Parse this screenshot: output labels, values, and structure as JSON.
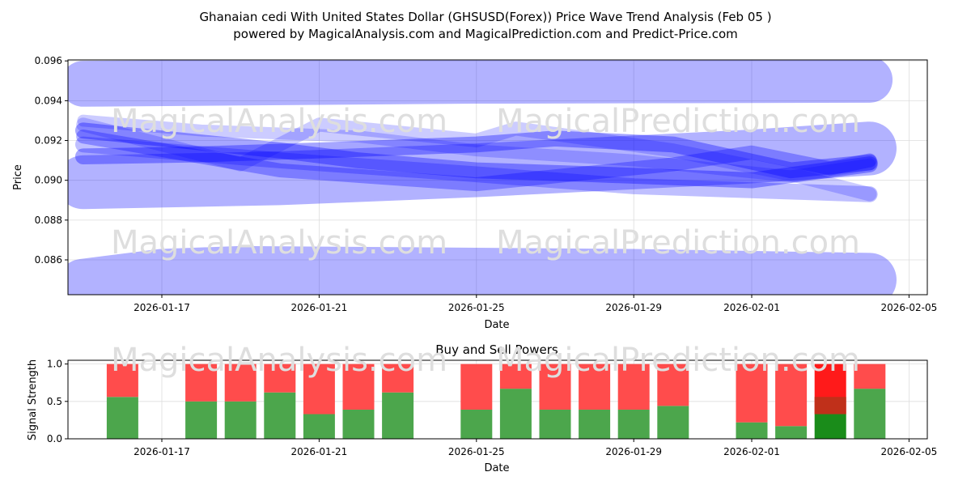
{
  "title_line1": "Ghanaian cedi With United States Dollar (GHSUSD(Forex)) Price Wave Trend Analysis (Feb 05 )",
  "title_line2": "powered by MagicalAnalysis.com and MagicalPrediction.com and Predict-Price.com",
  "watermarks": [
    "MagicalAnalysis.com",
    "MagicalPrediction.com"
  ],
  "colors": {
    "band": "#0000ff",
    "buy": "#4ca64c",
    "sell": "#ff4c4c",
    "buy_strong": "#1a8c1a",
    "sell_strong": "#ff1a1a",
    "overlap": "#c0301a"
  },
  "chart_data": [
    {
      "type": "line",
      "title": "",
      "xlabel": "Date",
      "ylabel": "Price",
      "ylim": [
        0.08425,
        0.09605
      ],
      "xlim_days": [
        "2026-01-14.6",
        "2026-02-05.4"
      ],
      "yticks": [
        "0.086",
        "0.088",
        "0.090",
        "0.092",
        "0.094",
        "0.096"
      ],
      "ytick_values": [
        0.086,
        0.088,
        0.09,
        0.092,
        0.094,
        0.096
      ],
      "xticks": [
        "2026-01-17",
        "2026-01-21",
        "2026-01-25",
        "2026-01-29",
        "2026-02-01",
        "2026-02-05"
      ],
      "grid": true,
      "bands": [
        {
          "name": "upper-band",
          "thickness": 0.0023,
          "opacity": 0.3,
          "points": [
            [
              "2026-01-15",
              0.09485
            ],
            [
              "2026-01-25",
              0.095
            ],
            [
              "2026-02-04",
              0.09505
            ]
          ]
        },
        {
          "name": "lower-band",
          "thickness": 0.0027,
          "opacity": 0.3,
          "points": [
            [
              "2026-01-15",
              0.0847
            ],
            [
              "2026-01-17",
              0.0852
            ],
            [
              "2026-01-19",
              0.08535
            ],
            [
              "2026-01-29",
              0.0852
            ],
            [
              "2026-02-04",
              0.085
            ]
          ]
        },
        {
          "name": "middle-band",
          "thickness": 0.0027,
          "opacity": 0.3,
          "points": [
            [
              "2026-01-15",
              0.0899
            ],
            [
              "2026-01-20",
              0.0901
            ],
            [
              "2026-01-25",
              0.0905
            ],
            [
              "2026-01-29",
              0.0909
            ],
            [
              "2026-02-01",
              0.0912
            ],
            [
              "2026-02-04",
              0.0916
            ]
          ]
        },
        {
          "name": "wave-a",
          "thickness": 0.0008,
          "opacity": 0.35,
          "points": [
            [
              "2026-01-15",
              0.0925
            ],
            [
              "2026-01-20",
              0.0915
            ],
            [
              "2026-01-22",
              0.091
            ],
            [
              "2026-01-25",
              0.0905
            ],
            [
              "2026-01-28",
              0.0903
            ],
            [
              "2026-02-01",
              0.09
            ],
            [
              "2026-02-04",
              0.0908
            ]
          ]
        },
        {
          "name": "wave-b",
          "thickness": 0.0008,
          "opacity": 0.35,
          "points": [
            [
              "2026-01-15",
              0.0912
            ],
            [
              "2026-01-18",
              0.0913
            ],
            [
              "2026-01-21",
              0.0915
            ],
            [
              "2026-01-25",
              0.0918
            ],
            [
              "2026-01-27",
              0.0921
            ],
            [
              "2026-01-30",
              0.0918
            ],
            [
              "2026-02-02",
              0.0905
            ],
            [
              "2026-02-04",
              0.0909
            ]
          ]
        },
        {
          "name": "wave-c",
          "thickness": 0.0007,
          "opacity": 0.2,
          "points": [
            [
              "2026-01-15",
              0.0928
            ],
            [
              "2026-01-19",
              0.0908
            ],
            [
              "2026-01-21",
              0.0928
            ],
            [
              "2026-01-25",
              0.092
            ],
            [
              "2026-01-26",
              0.0926
            ],
            [
              "2026-01-30",
              0.0915
            ],
            [
              "2026-02-02",
              0.0903
            ],
            [
              "2026-02-04",
              0.0893
            ]
          ]
        },
        {
          "name": "wave-d",
          "thickness": 0.0008,
          "opacity": 0.25,
          "points": [
            [
              "2026-01-15",
              0.0918
            ],
            [
              "2026-01-20",
              0.091
            ],
            [
              "2026-01-25",
              0.0903
            ],
            [
              "2026-01-29",
              0.0897
            ],
            [
              "2026-02-04",
              0.0893
            ]
          ]
        },
        {
          "name": "wave-e",
          "thickness": 0.0007,
          "opacity": 0.3,
          "points": [
            [
              "2026-01-15",
              0.0922
            ],
            [
              "2026-01-20",
              0.0905
            ],
            [
              "2026-01-25",
              0.0898
            ],
            [
              "2026-01-30",
              0.0908
            ],
            [
              "2026-02-01",
              0.0914
            ],
            [
              "2026-02-03",
              0.0906
            ],
            [
              "2026-02-04",
              0.091
            ]
          ]
        },
        {
          "name": "wave-f",
          "thickness": 0.0006,
          "opacity": 0.2,
          "points": [
            [
              "2026-01-15",
              0.093
            ],
            [
              "2026-01-18",
              0.0925
            ],
            [
              "2026-01-22",
              0.0922
            ],
            [
              "2026-01-25",
              0.0915
            ],
            [
              "2026-01-29",
              0.091
            ],
            [
              "2026-02-02",
              0.0902
            ],
            [
              "2026-02-04",
              0.0908
            ]
          ]
        }
      ]
    },
    {
      "type": "bar",
      "title": "Buy and Sell Powers",
      "xlabel": "Date",
      "ylabel": "Signal Strength",
      "ylim": [
        0,
        1.05
      ],
      "yticks": [
        "0.0",
        "0.5",
        "1.0"
      ],
      "ytick_values": [
        0,
        0.5,
        1.0
      ],
      "xticks": [
        "2026-01-17",
        "2026-01-21",
        "2026-01-25",
        "2026-01-29",
        "2026-02-01",
        "2026-02-05"
      ],
      "grid": true,
      "categories": [
        "2026-01-16",
        "2026-01-18",
        "2026-01-19",
        "2026-01-20",
        "2026-01-21",
        "2026-01-22",
        "2026-01-23",
        "2026-01-25",
        "2026-01-26",
        "2026-01-27",
        "2026-01-28",
        "2026-01-29",
        "2026-01-30",
        "2026-02-01",
        "2026-02-02",
        "2026-02-03",
        "2026-02-04"
      ],
      "series": [
        {
          "name": "Buy",
          "values": [
            0.56,
            0.5,
            0.5,
            0.62,
            0.33,
            0.39,
            0.62,
            0.39,
            0.67,
            0.39,
            0.39,
            0.39,
            0.44,
            0.22,
            0.17,
            0.33,
            0.67
          ]
        },
        {
          "name": "Sell",
          "values": [
            0.44,
            0.5,
            0.5,
            0.38,
            0.67,
            0.61,
            0.38,
            0.61,
            0.33,
            0.61,
            0.61,
            0.61,
            0.56,
            0.78,
            0.83,
            0.67,
            0.33
          ]
        }
      ],
      "strong_signal_date": "2026-02-03",
      "strong_signal_overlap": [
        0.33,
        0.56
      ]
    }
  ]
}
